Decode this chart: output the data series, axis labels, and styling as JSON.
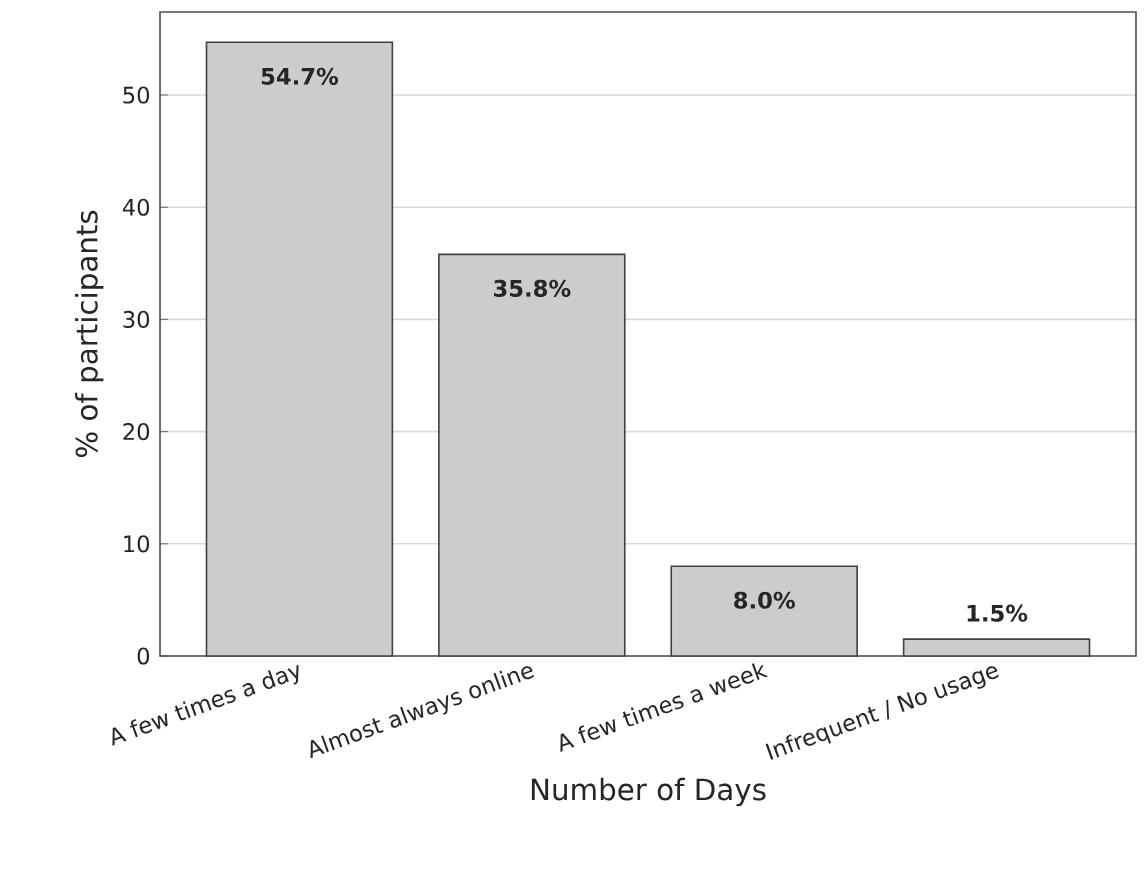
{
  "chart_data": {
    "type": "bar",
    "xlabel": "Number of Days",
    "ylabel": "% of participants",
    "categories": [
      "A few times a day",
      "Almost always online",
      "A few times a week",
      "Infrequent / No usage"
    ],
    "values": [
      54.7,
      35.8,
      8.0,
      1.5
    ],
    "value_labels": [
      "54.7%",
      "35.8%",
      "8.0%",
      "1.5%"
    ],
    "color": "#cccccc",
    "ylim": [
      0,
      57.4
    ],
    "yticks": [
      0,
      10,
      20,
      30,
      40,
      50
    ],
    "grid": "y"
  }
}
